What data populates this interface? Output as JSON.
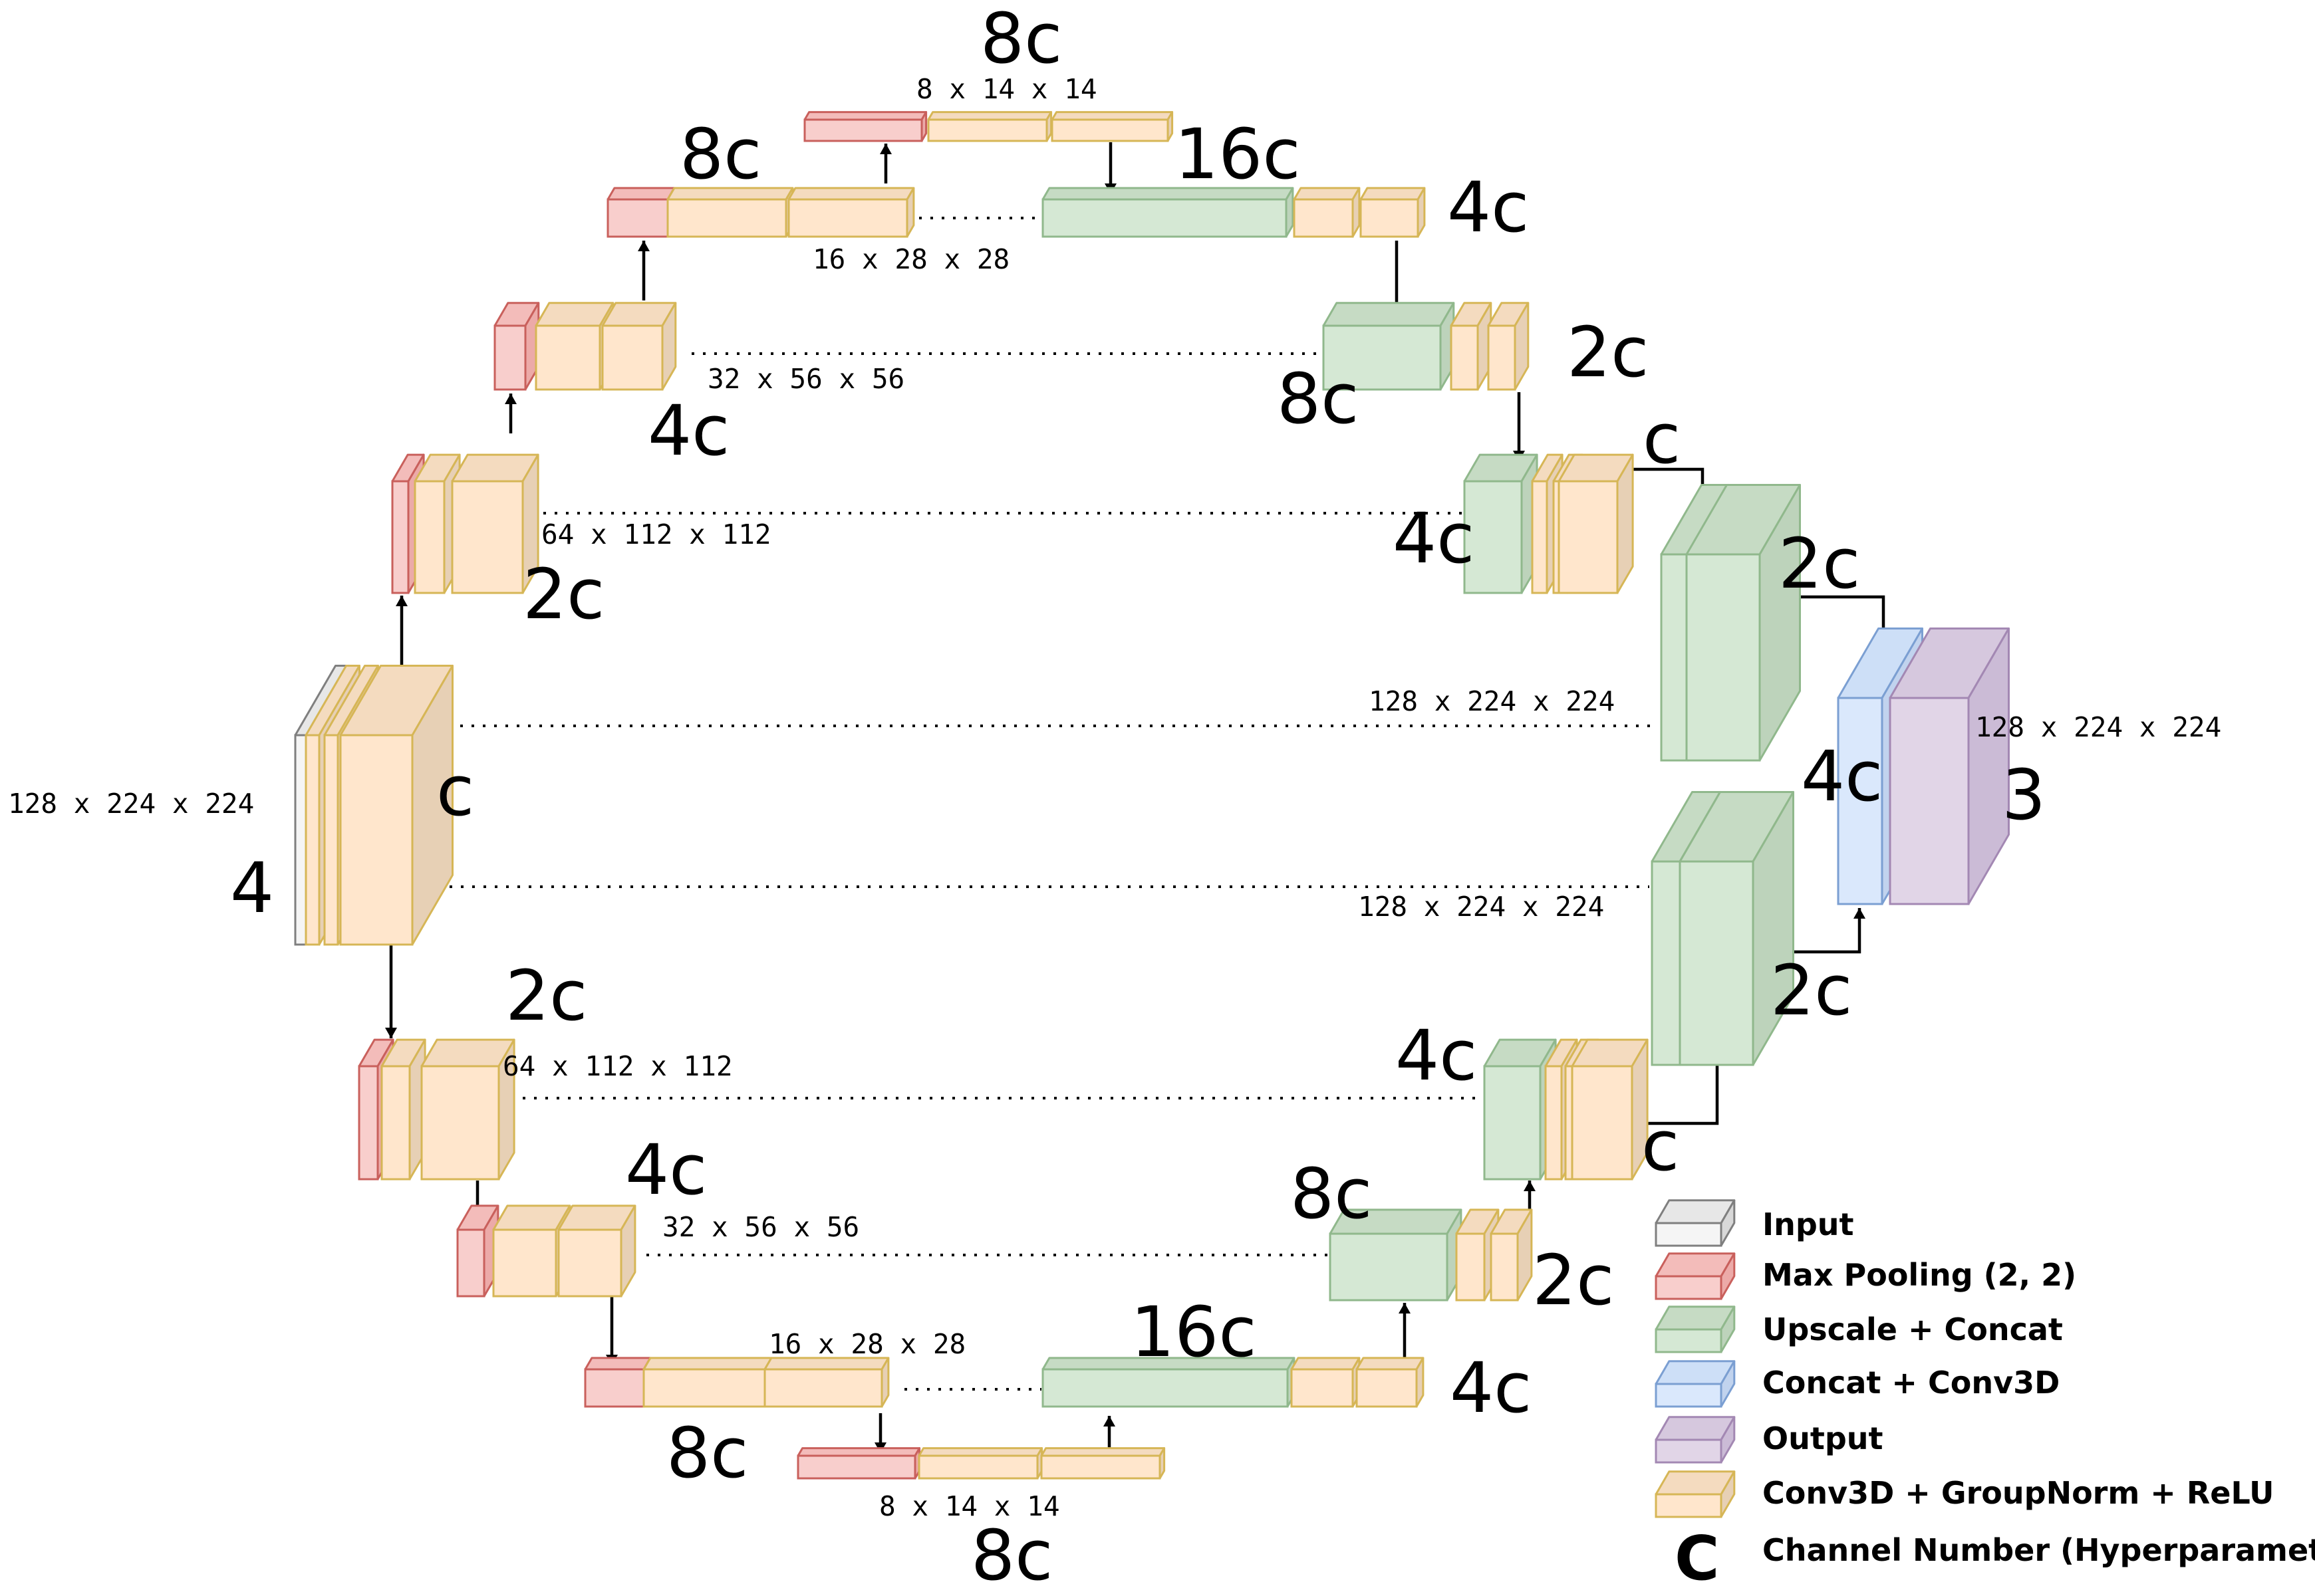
{
  "colors": {
    "input": {
      "front": "#f5f5f5",
      "side": "#d8d8d8",
      "top": "#e7e7e7",
      "stroke": "#7f7f7f"
    },
    "pool": {
      "front": "#f8cecc",
      "side": "#ecaaa8",
      "top": "#f3bcba",
      "stroke": "#c9605c"
    },
    "upcat": {
      "front": "#d5e8d4",
      "side": "#bdd3bb",
      "top": "#c6dbc4",
      "stroke": "#90b88c"
    },
    "catconv": {
      "front": "#dae8fc",
      "side": "#c1d3ee",
      "top": "#cddff7",
      "stroke": "#7b9fd2"
    },
    "output": {
      "front": "#e1d5e7",
      "side": "#cbbbd6",
      "top": "#d6c8de",
      "stroke": "#a388b3"
    },
    "conv": {
      "front": "#ffe6cc",
      "side": "#e7d0b5",
      "top": "#f4dbbf",
      "stroke": "#d6b656"
    }
  },
  "labels": {
    "dims": [
      "8 x 14 x 14",
      "16 x 28 x 28",
      "32 x 56 x 56",
      "64 x 112 x 112",
      "128 x 224 x 224",
      "128 x 224 x 224",
      "128 x 224 x 224",
      "64 x 112 x 112",
      "32 x 56 x 56",
      "16 x 28 x 28",
      "8 x 14 x 14",
      "128 x 224 x 224"
    ],
    "channels": [
      "8c",
      "8c",
      "16c",
      "4c",
      "2c",
      "8c",
      "4c",
      "c",
      "2c",
      "4c",
      "2c",
      "c",
      "4",
      "4c",
      "3",
      "2c",
      "2c",
      "4c",
      "c",
      "4c",
      "8c",
      "2c",
      "16c",
      "4c",
      "8c",
      "8c"
    ]
  },
  "legend": {
    "items": [
      {
        "label": "Input"
      },
      {
        "label": "Max Pooling (2, 2)"
      },
      {
        "label": "Upscale + Concat"
      },
      {
        "label": "Concat + Conv3D"
      },
      {
        "label": "Output"
      },
      {
        "label": "Conv3D + GroupNorm + ReLU"
      }
    ],
    "channel_symbol": "C",
    "channel_label": "Channel Number (Hyperparameter)"
  }
}
